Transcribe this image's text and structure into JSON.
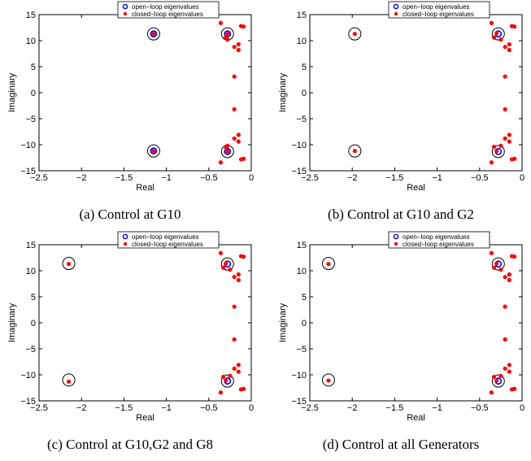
{
  "chart_data": [
    {
      "type": "scatter",
      "caption": "(a) Control at G10",
      "xlabel": "Real",
      "ylabel": "Imaginary",
      "xlim": [
        -2.5,
        0
      ],
      "ylim": [
        -15,
        15
      ],
      "xticks": [
        "−2.5",
        "−2",
        "−1.5",
        "−1",
        "−0.5",
        "0"
      ],
      "yticks": [
        "15",
        "10",
        "5",
        "0",
        "−5",
        "−10",
        "−15"
      ],
      "grid": false,
      "legend_position": "top-center",
      "series": [
        {
          "name": "open−loop eigenvalues",
          "marker": "open-circle",
          "color": "#0000ff",
          "x": [
            -1.15,
            -1.15,
            -0.28,
            -0.28
          ],
          "y": [
            11.3,
            -11.2,
            11.3,
            -11.3
          ]
        },
        {
          "name": "closed−loop eigenvalues",
          "marker": "filled-dot",
          "color": "#ff0000",
          "x": [
            -1.15,
            -1.15,
            -0.28,
            -0.28,
            -0.36,
            -0.3,
            -0.2,
            -0.12,
            -0.09,
            -0.15,
            -0.28,
            -0.15,
            -0.2,
            -0.2,
            -0.36,
            -0.3,
            -0.2,
            -0.12,
            -0.09,
            -0.15,
            -0.28,
            -0.15
          ],
          "y": [
            11.3,
            -11.2,
            11.3,
            -11.3,
            13.4,
            10.6,
            8.8,
            12.8,
            12.7,
            9.3,
            10.2,
            8.2,
            3.1,
            -3.2,
            -13.4,
            -10.4,
            -8.8,
            -12.8,
            -12.7,
            -9.4,
            -10.2,
            -8.1
          ]
        }
      ],
      "circled_points": {
        "x": [
          -1.15,
          -1.15,
          -0.28,
          -0.28
        ],
        "y": [
          11.3,
          -11.2,
          11.3,
          -11.3
        ]
      }
    },
    {
      "type": "scatter",
      "caption": "(b) Control at G10 and G2",
      "xlabel": "Real",
      "ylabel": "Imaginary",
      "xlim": [
        -2.5,
        0
      ],
      "ylim": [
        -15,
        15
      ],
      "xticks": [
        "−2.5",
        "−2",
        "−1.5",
        "−1",
        "−0.5",
        "0"
      ],
      "yticks": [
        "15",
        "10",
        "5",
        "0",
        "−5",
        "−10",
        "−15"
      ],
      "grid": false,
      "legend_position": "top-center",
      "series": [
        {
          "name": "open−loop eigenvalues",
          "marker": "open-circle",
          "color": "#0000ff",
          "x": [
            -0.28,
            -0.28
          ],
          "y": [
            11.3,
            -11.3
          ]
        },
        {
          "name": "closed−loop eigenvalues",
          "marker": "filled-dot",
          "color": "#ff0000",
          "x": [
            -1.97,
            -1.97,
            -0.3,
            -0.3,
            -0.36,
            -0.33,
            -0.2,
            -0.12,
            -0.09,
            -0.15,
            -0.25,
            -0.15,
            -0.2,
            -0.2,
            -0.36,
            -0.33,
            -0.2,
            -0.12,
            -0.09,
            -0.15,
            -0.25,
            -0.15
          ],
          "y": [
            11.3,
            -11.2,
            11.4,
            -11.2,
            13.4,
            10.6,
            8.8,
            12.8,
            12.7,
            9.3,
            10.2,
            8.2,
            3.1,
            -3.2,
            -13.4,
            -10.4,
            -8.8,
            -12.8,
            -12.7,
            -9.4,
            -10.2,
            -8.1
          ]
        }
      ],
      "circled_points": {
        "x": [
          -1.97,
          -1.97,
          -0.28,
          -0.28
        ],
        "y": [
          11.3,
          -11.2,
          11.3,
          -11.3
        ]
      }
    },
    {
      "type": "scatter",
      "caption": "(c) Control at G10,G2 and G8",
      "xlabel": "Real",
      "ylabel": "Imaginary",
      "xlim": [
        -2.5,
        0
      ],
      "ylim": [
        -15,
        15
      ],
      "xticks": [
        "−2.5",
        "−2",
        "−1.5",
        "−1",
        "−0.5",
        "0"
      ],
      "yticks": [
        "15",
        "10",
        "5",
        "0",
        "−5",
        "−10",
        "−15"
      ],
      "grid": false,
      "legend_position": "top-center",
      "series": [
        {
          "name": "open−loop eigenvalues",
          "marker": "open-circle",
          "color": "#0000ff",
          "x": [
            -0.28,
            -0.28
          ],
          "y": [
            11.3,
            -11.2
          ]
        },
        {
          "name": "closed−loop eigenvalues",
          "marker": "filled-dot",
          "color": "#ff0000",
          "x": [
            -2.15,
            -2.15,
            -0.3,
            -0.3,
            -0.36,
            -0.33,
            -0.2,
            -0.12,
            -0.09,
            -0.15,
            -0.25,
            -0.15,
            -0.2,
            -0.2,
            -0.36,
            -0.33,
            -0.2,
            -0.12,
            -0.09,
            -0.15,
            -0.25,
            -0.15
          ],
          "y": [
            11.3,
            -11.3,
            11.4,
            -11.1,
            13.4,
            10.6,
            8.8,
            12.8,
            12.7,
            9.3,
            10.2,
            8.2,
            3.1,
            -3.2,
            -13.4,
            -10.4,
            -8.8,
            -12.8,
            -12.7,
            -9.4,
            -10.2,
            -8.1
          ]
        }
      ],
      "circled_points": {
        "x": [
          -2.15,
          -2.15,
          -0.28,
          -0.28
        ],
        "y": [
          11.4,
          -11.0,
          11.3,
          -11.2
        ]
      }
    },
    {
      "type": "scatter",
      "caption": "(d) Control at all Generators",
      "xlabel": "Real",
      "ylabel": "Imaginary",
      "xlim": [
        -2.5,
        0
      ],
      "ylim": [
        -15,
        15
      ],
      "xticks": [
        "−2.5",
        "−2",
        "−1.5",
        "−1",
        "−0.5",
        "0"
      ],
      "yticks": [
        "15",
        "10",
        "5",
        "0",
        "−5",
        "−10",
        "−15"
      ],
      "grid": false,
      "legend_position": "top-center",
      "series": [
        {
          "name": "open−loop eigenvalues",
          "marker": "open-circle",
          "color": "#0000ff",
          "x": [
            -0.28,
            -0.28
          ],
          "y": [
            11.3,
            -11.2
          ]
        },
        {
          "name": "closed−loop eigenvalues",
          "marker": "filled-dot",
          "color": "#ff0000",
          "x": [
            -2.28,
            -2.28,
            -0.3,
            -0.3,
            -0.36,
            -0.33,
            -0.2,
            -0.12,
            -0.09,
            -0.15,
            -0.25,
            -0.15,
            -0.2,
            -0.2,
            -0.36,
            -0.33,
            -0.2,
            -0.12,
            -0.09,
            -0.15,
            -0.25,
            -0.15
          ],
          "y": [
            11.3,
            -11.1,
            11.4,
            -11.1,
            13.4,
            10.6,
            8.8,
            12.8,
            12.7,
            9.3,
            10.2,
            8.2,
            3.1,
            -3.2,
            -13.4,
            -10.4,
            -8.8,
            -12.8,
            -12.7,
            -9.4,
            -10.2,
            -8.1
          ]
        }
      ],
      "circled_points": {
        "x": [
          -2.28,
          -2.28,
          -0.28,
          -0.28
        ],
        "y": [
          11.4,
          -11.0,
          11.3,
          -11.2
        ]
      }
    }
  ]
}
